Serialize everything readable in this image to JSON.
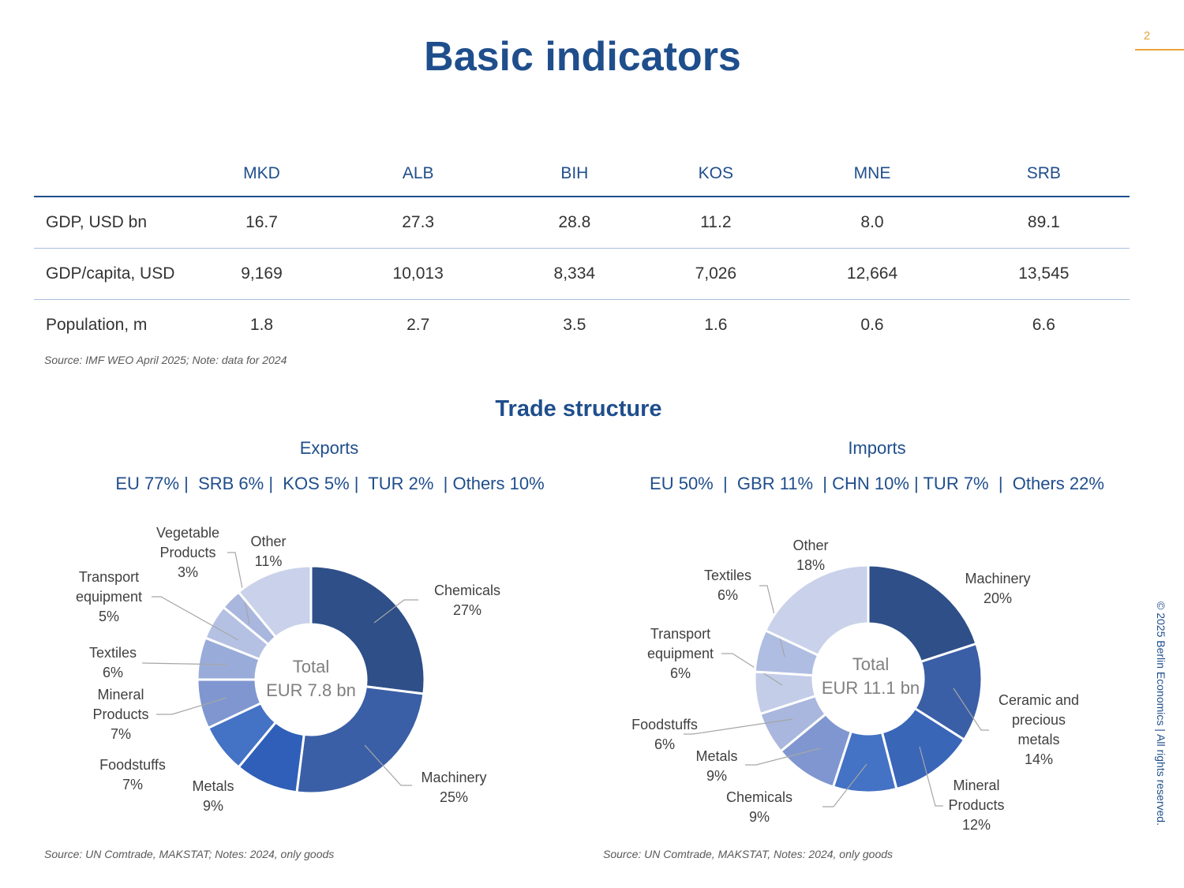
{
  "page_number": "2",
  "title": "Basic indicators",
  "indicators": {
    "columns": [
      "MKD",
      "ALB",
      "BIH",
      "KOS",
      "MNE",
      "SRB"
    ],
    "rows": [
      {
        "label": "GDP, USD bn",
        "values": [
          "16.7",
          "27.3",
          "28.8",
          "11.2",
          "8.0",
          "89.1"
        ]
      },
      {
        "label": "GDP/capita, USD",
        "values": [
          "9,169",
          "10,013",
          "8,334",
          "7,026",
          "12,664",
          "13,545"
        ]
      },
      {
        "label": "Population, m",
        "values": [
          "1.8",
          "2.7",
          "3.5",
          "1.6",
          "0.6",
          "6.6"
        ]
      }
    ],
    "source": "Source: IMF WEO April 2025; Note: data for 2024"
  },
  "trade_title": "Trade structure",
  "exports": {
    "title": "Exports",
    "partners": "EU 77% |  SRB 6% |  KOS 5% |  TUR 2%  | Others 10%",
    "total_line1": "Total",
    "total_line2": "EUR 7.8 bn",
    "source": "Source: UN Comtrade, MAKSTAT; Notes: 2024, only goods"
  },
  "imports": {
    "title": "Imports",
    "partners": "EU 50%  |  GBR 11%  | CHN 10% | TUR 7%  |  Others 22%",
    "total_line1": "Total",
    "total_line2": "EUR 11.1 bn",
    "source": "Source: UN Comtrade, MAKSTAT, Notes: 2024, only goods"
  },
  "chart_data": [
    {
      "type": "pie",
      "title": "Exports",
      "categories": [
        "Chemicals",
        "Machinery",
        "Metals",
        "Foodstuffs",
        "Mineral Products",
        "Textiles",
        "Transport equipment",
        "Vegetable Products",
        "Other"
      ],
      "labels": [
        [
          "Chemicals",
          "27%"
        ],
        [
          "Machinery",
          "25%"
        ],
        [
          "Metals",
          "9%"
        ],
        [
          "Foodstuffs",
          "7%"
        ],
        [
          "Mineral",
          "Products",
          "7%"
        ],
        [
          "Textiles",
          "6%"
        ],
        [
          "Transport",
          "equipment",
          "5%"
        ],
        [
          "Vegetable",
          "Products",
          "3%"
        ],
        [
          "Other",
          "11%"
        ]
      ],
      "values": [
        27,
        25,
        9,
        7,
        7,
        6,
        5,
        3,
        11
      ],
      "colors": [
        "#2e4f88",
        "#3a5fa6",
        "#2f5fb8",
        "#4472c4",
        "#8096d0",
        "#99acd9",
        "#b4c1e3",
        "#a9b6dd",
        "#c9d2ea"
      ]
    },
    {
      "type": "pie",
      "title": "Imports",
      "categories": [
        "Machinery",
        "Ceramic and precious metals",
        "Mineral Products",
        "Chemicals",
        "Metals",
        "Foodstuffs",
        "Transport equipment",
        "Textiles",
        "Other"
      ],
      "labels": [
        [
          "Machinery",
          "20%"
        ],
        [
          "Ceramic and",
          "precious",
          "metals",
          "14%"
        ],
        [
          "Mineral",
          "Products",
          "12%"
        ],
        [
          "Chemicals",
          "9%"
        ],
        [
          "Metals",
          "9%"
        ],
        [
          "Foodstuffs",
          "6%"
        ],
        [
          "Transport",
          "equipment",
          "6%"
        ],
        [
          "Textiles",
          "6%"
        ],
        [
          "Other",
          "18%"
        ]
      ],
      "values": [
        20,
        14,
        12,
        9,
        9,
        6,
        6,
        6,
        18
      ],
      "colors": [
        "#2e4f88",
        "#3a5fa6",
        "#3a66b8",
        "#4472c4",
        "#8096d0",
        "#a9b6dd",
        "#c4cde8",
        "#b0bde2",
        "#c9d2ea"
      ]
    }
  ],
  "copyright": "© 2025 Berlin Economics | All rights reserved."
}
